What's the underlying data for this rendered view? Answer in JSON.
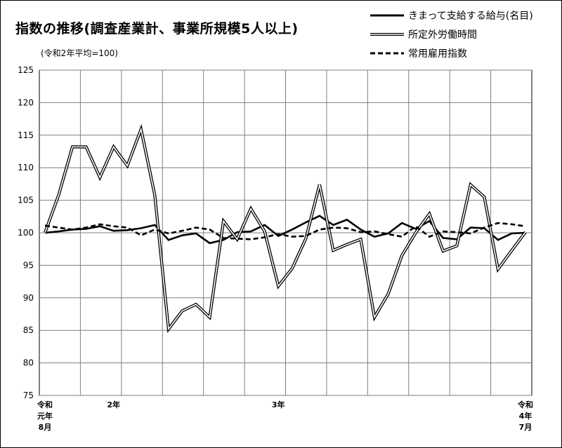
{
  "title": "指数の推移(調査産業計、事業所規模5人以上)",
  "subtitle": "(令和2年平均=100)",
  "legend": [
    {
      "name": "きまって支給する給与(名目)",
      "style": "solid"
    },
    {
      "name": "所定外労働時間",
      "style": "double"
    },
    {
      "name": "常用雇用指数",
      "style": "dashed"
    }
  ],
  "x_labels": {
    "start": [
      "令和",
      "元年",
      "8月"
    ],
    "mid1": "2年",
    "mid2": "3年",
    "end": [
      "令和",
      "4年",
      "7月"
    ]
  },
  "chart_data": {
    "type": "line",
    "title": "指数の推移(調査産業計、事業所規模5人以上)",
    "subtitle": "(令和2年平均=100)",
    "x": [
      "R1.8",
      "R1.9",
      "R1.10",
      "R1.11",
      "R1.12",
      "R2.1",
      "R2.2",
      "R2.3",
      "R2.4",
      "R2.5",
      "R2.6",
      "R2.7",
      "R2.8",
      "R2.9",
      "R2.10",
      "R2.11",
      "R2.12",
      "R3.1",
      "R3.2",
      "R3.3",
      "R3.4",
      "R3.5",
      "R3.6",
      "R3.7",
      "R3.8",
      "R3.9",
      "R3.10",
      "R3.11",
      "R3.12",
      "R4.1",
      "R4.2",
      "R4.3",
      "R4.4",
      "R4.5",
      "R4.6",
      "R4.7"
    ],
    "ylim": [
      75,
      125
    ],
    "yticks": [
      75,
      80,
      85,
      90,
      95,
      100,
      105,
      110,
      115,
      120,
      125
    ],
    "grid": true,
    "legend_position": "top-right",
    "series": [
      {
        "name": "きまって支給する給与(名目)",
        "style": "solid",
        "values": [
          100.0,
          100.2,
          100.5,
          100.6,
          101.0,
          100.3,
          100.4,
          100.7,
          101.2,
          98.9,
          99.6,
          99.9,
          98.4,
          98.9,
          100.1,
          100.2,
          101.2,
          99.5,
          100.5,
          101.6,
          102.6,
          101.2,
          102.0,
          100.5,
          99.4,
          99.9,
          101.5,
          100.6,
          101.8,
          99.2,
          99.0,
          100.8,
          100.7,
          98.9,
          99.9,
          100.0
        ]
      },
      {
        "name": "所定外労働時間",
        "style": "double",
        "values": [
          100.0,
          105.8,
          113.2,
          113.2,
          108.5,
          113.2,
          110.3,
          115.9,
          105.8,
          85.2,
          88.0,
          89.0,
          87.0,
          101.8,
          99.0,
          103.7,
          100.2,
          91.8,
          94.5,
          99.1,
          107.4,
          97.3,
          98.2,
          99.0,
          87.0,
          90.6,
          96.5,
          100.0,
          102.9,
          97.2,
          98.0,
          107.4,
          105.5,
          94.4,
          97.3,
          100.1
        ]
      },
      {
        "name": "常用雇用指数",
        "style": "dashed",
        "values": [
          101.1,
          100.8,
          100.5,
          100.8,
          101.3,
          101.0,
          100.8,
          99.6,
          100.5,
          99.9,
          100.3,
          100.8,
          100.5,
          99.2,
          99.1,
          99.0,
          99.3,
          99.8,
          99.4,
          99.5,
          100.5,
          100.8,
          100.7,
          100.1,
          100.2,
          99.8,
          99.4,
          101.0,
          99.4,
          100.2,
          100.1,
          99.9,
          100.8,
          101.5,
          101.3,
          101.0
        ]
      }
    ]
  }
}
